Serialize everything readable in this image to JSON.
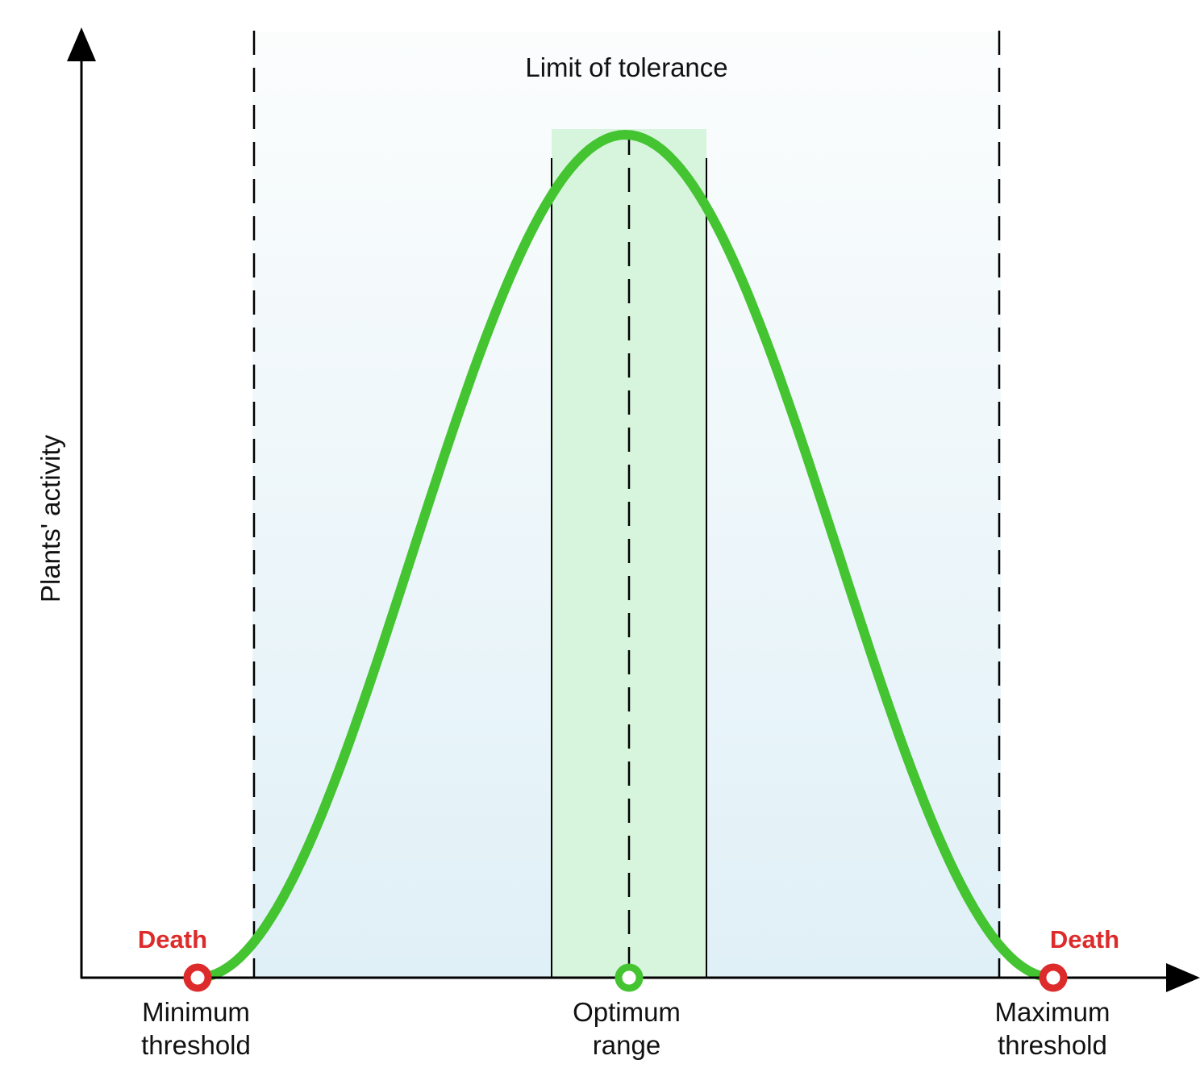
{
  "y_axis_label": "Plants' activity",
  "zone_title": "Limit of tolerance",
  "markers": {
    "min": {
      "death_label": "Death",
      "label_line1": "Minimum",
      "label_line2": "threshold"
    },
    "optimum": {
      "label_line1": "Optimum",
      "label_line2": "range"
    },
    "max": {
      "death_label": "Death",
      "label_line1": "Maximum",
      "label_line2": "threshold"
    }
  },
  "colors": {
    "curve": "#44c431",
    "death": "#dd2b2b",
    "optimum_marker": "#44c431",
    "optimum_band": "#d7f5dc",
    "tolerance_top": "#fbfdfd",
    "tolerance_bottom": "#e0f0f7",
    "axis": "#000000"
  }
}
